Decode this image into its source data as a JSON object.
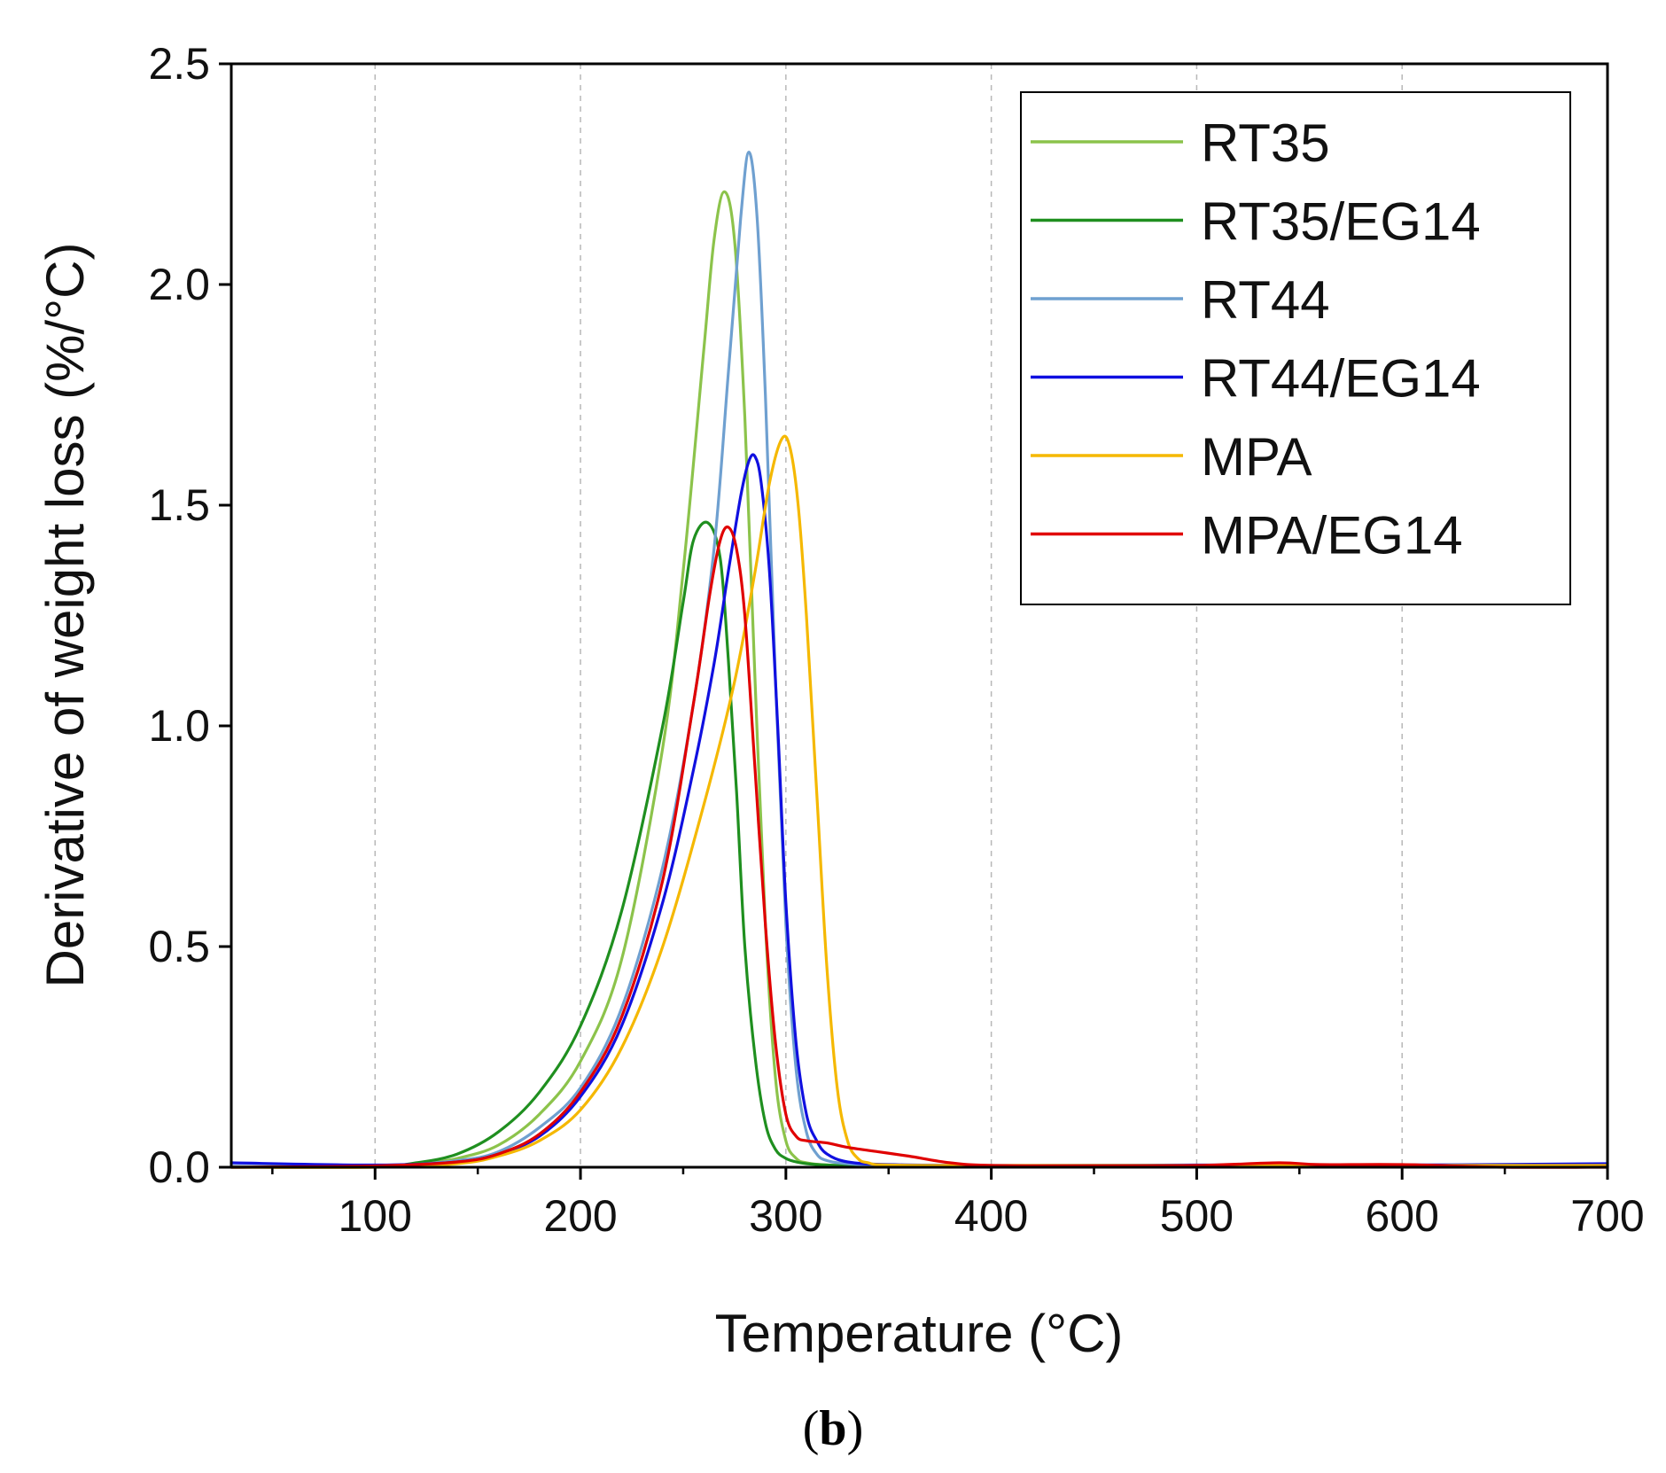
{
  "chart_data": {
    "type": "line",
    "xlabel": "Temperature (°C)",
    "ylabel": "Derivative of weight loss (%/°C)",
    "xlim": [
      30,
      700
    ],
    "ylim": [
      0,
      2.5
    ],
    "x_ticks": [
      100,
      200,
      300,
      400,
      500,
      600,
      700
    ],
    "x_tick_labels": [
      "100",
      "200",
      "300",
      "400",
      "500",
      "600",
      "700"
    ],
    "x_minor_ticks": [
      50,
      150,
      250,
      350,
      450,
      550,
      650
    ],
    "y_ticks": [
      0,
      0.5,
      1.0,
      1.5,
      2.0,
      2.5
    ],
    "y_tick_labels": [
      "0.0",
      "0.5",
      "1.0",
      "1.5",
      "2.0",
      "2.5"
    ],
    "vertical_gridlines": [
      100,
      200,
      300,
      400,
      500,
      600
    ],
    "grid": "vertical dashed",
    "legend_position": "top-right",
    "panel_label": {
      "open": "(",
      "letter": "b",
      "close": ")"
    },
    "series": [
      {
        "name": "RT35",
        "color": "#8cc34b",
        "x": [
          30,
          100,
          120,
          140,
          160,
          180,
          200,
          220,
          240,
          250,
          260,
          265,
          270,
          275,
          280,
          285,
          290,
          295,
          300,
          305,
          310,
          320,
          340,
          400,
          500,
          600,
          700
        ],
        "y": [
          0.002,
          0.002,
          0.006,
          0.02,
          0.05,
          0.12,
          0.24,
          0.47,
          0.95,
          1.35,
          1.85,
          2.1,
          2.21,
          2.1,
          1.7,
          1.1,
          0.55,
          0.2,
          0.06,
          0.02,
          0.01,
          0.005,
          0.003,
          0.003,
          0.003,
          0.003,
          0.003
        ]
      },
      {
        "name": "RT35/EG14",
        "color": "#1f8f1f",
        "x": [
          30,
          100,
          120,
          140,
          160,
          180,
          200,
          220,
          240,
          250,
          255,
          262,
          268,
          272,
          276,
          280,
          285,
          290,
          295,
          300,
          305,
          310,
          320,
          340,
          400,
          500,
          600,
          700
        ],
        "y": [
          0.0,
          0.003,
          0.01,
          0.03,
          0.08,
          0.17,
          0.32,
          0.58,
          1.0,
          1.28,
          1.42,
          1.46,
          1.38,
          1.15,
          0.85,
          0.5,
          0.25,
          0.1,
          0.04,
          0.02,
          0.012,
          0.008,
          0.005,
          0.003,
          0.002,
          0.002,
          0.003,
          0.003
        ]
      },
      {
        "name": "RT44",
        "color": "#6fa0d0",
        "x": [
          30,
          100,
          140,
          160,
          180,
          200,
          220,
          240,
          255,
          265,
          272,
          278,
          282,
          286,
          290,
          295,
          300,
          305,
          310,
          315,
          320,
          330,
          350,
          400,
          500,
          600,
          700
        ],
        "y": [
          0.002,
          0.002,
          0.015,
          0.035,
          0.09,
          0.18,
          0.36,
          0.68,
          1.05,
          1.4,
          1.8,
          2.15,
          2.3,
          2.15,
          1.75,
          1.1,
          0.55,
          0.22,
          0.08,
          0.03,
          0.015,
          0.008,
          0.004,
          0.002,
          0.002,
          0.002,
          0.002
        ]
      },
      {
        "name": "RT44/EG14",
        "color": "#1010e0",
        "x": [
          30,
          100,
          140,
          160,
          180,
          200,
          220,
          240,
          255,
          265,
          272,
          278,
          282,
          285,
          288,
          292,
          296,
          300,
          305,
          310,
          315,
          320,
          330,
          350,
          400,
          500,
          600,
          700
        ],
        "y": [
          0.01,
          0.005,
          0.012,
          0.03,
          0.07,
          0.16,
          0.32,
          0.6,
          0.9,
          1.14,
          1.35,
          1.52,
          1.6,
          1.61,
          1.55,
          1.35,
          1.0,
          0.6,
          0.28,
          0.12,
          0.06,
          0.03,
          0.012,
          0.006,
          0.004,
          0.005,
          0.005,
          0.008
        ]
      },
      {
        "name": "MPA",
        "color": "#f5b800",
        "x": [
          30,
          100,
          140,
          160,
          180,
          200,
          220,
          240,
          260,
          275,
          285,
          292,
          298,
          302,
          306,
          310,
          315,
          320,
          325,
          330,
          335,
          340,
          350,
          400,
          500,
          600,
          700
        ],
        "y": [
          0.0,
          0.0,
          0.008,
          0.025,
          0.06,
          0.13,
          0.27,
          0.5,
          0.82,
          1.1,
          1.35,
          1.55,
          1.65,
          1.63,
          1.5,
          1.25,
          0.85,
          0.45,
          0.18,
          0.06,
          0.02,
          0.01,
          0.005,
          0.004,
          0.004,
          0.004,
          0.004
        ]
      },
      {
        "name": "MPA/EG14",
        "color": "#e00000",
        "x": [
          30,
          100,
          140,
          160,
          180,
          200,
          220,
          240,
          255,
          263,
          268,
          272,
          276,
          280,
          285,
          290,
          295,
          300,
          305,
          310,
          320,
          330,
          345,
          360,
          380,
          400,
          450,
          500,
          540,
          560,
          600,
          650,
          700
        ],
        "y": [
          0.0,
          0.003,
          0.012,
          0.03,
          0.075,
          0.17,
          0.34,
          0.65,
          1.05,
          1.3,
          1.42,
          1.45,
          1.4,
          1.25,
          0.9,
          0.55,
          0.28,
          0.12,
          0.07,
          0.06,
          0.055,
          0.045,
          0.035,
          0.025,
          0.01,
          0.004,
          0.003,
          0.004,
          0.01,
          0.006,
          0.006,
          0.0,
          0.0
        ]
      }
    ]
  }
}
